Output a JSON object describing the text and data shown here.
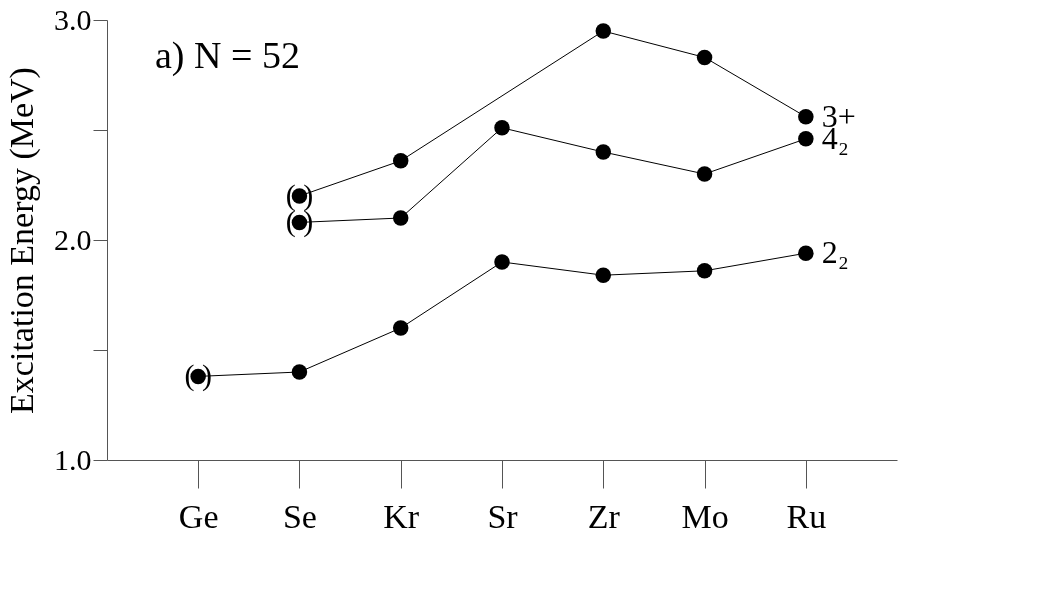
{
  "chart_data": {
    "type": "line",
    "ylabel": "Excitation Energy (MeV)",
    "categories": [
      "Ge",
      "Se",
      "Kr",
      "Sr",
      "Zr",
      "Mo",
      "Ru"
    ],
    "series": [
      {
        "name": "3+",
        "color": "#000000",
        "values": [
          null,
          2.2,
          2.36,
          null,
          2.95,
          2.83,
          2.56
        ]
      },
      {
        "name": "4₂",
        "color": "#000000",
        "values": [
          null,
          2.08,
          2.1,
          2.51,
          2.4,
          2.3,
          2.46
        ]
      },
      {
        "name": "2₂",
        "color": "#000000",
        "values": [
          1.38,
          1.4,
          1.6,
          1.9,
          1.84,
          1.86,
          1.94
        ]
      }
    ],
    "ylim": [
      1.0,
      3.0
    ],
    "yticks": [
      {
        "value": 1,
        "label": "1.0"
      },
      {
        "value": 1.5,
        "label": null
      },
      {
        "value": 2,
        "label": "2.0"
      },
      {
        "value": 2.5,
        "label": null
      },
      {
        "value": 3,
        "label": "3.0"
      }
    ],
    "marker": "circle",
    "line_style": "solid",
    "grid": false,
    "annotations": [
      "a)  N = 52",
      {
        "text": "(   )",
        "x": "Ge",
        "y": 1.38
      },
      {
        "text": "(   )",
        "x": "Se",
        "y": 2.2
      },
      {
        "text": "(   )",
        "x": "Se",
        "y": 2.08
      }
    ]
  }
}
